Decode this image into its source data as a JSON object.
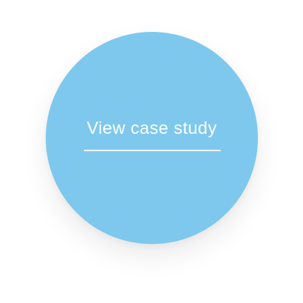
{
  "cta": {
    "label": "View case study",
    "background_color": "#7ec8ee",
    "text_color": "#ffffff"
  }
}
